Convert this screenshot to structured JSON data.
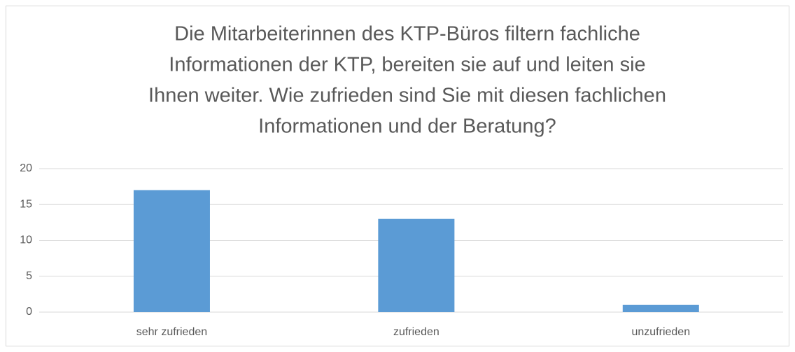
{
  "chart_data": {
    "type": "bar",
    "title": [
      "Die Mitarbeiterinnen des KTP-Büros filtern fachliche",
      "Informationen der KTP, bereiten sie auf und leiten sie",
      "Ihnen weiter. Wie zufrieden sind Sie mit diesen fachlichen",
      "Informationen und der Beratung?"
    ],
    "categories": [
      "sehr zufrieden",
      "zufrieden",
      "unzufrieden"
    ],
    "values": [
      17,
      13,
      1
    ],
    "color": "#5b9bd5",
    "ylim": [
      0,
      20
    ],
    "yticks": [
      0,
      5,
      10,
      15,
      20
    ],
    "grid": true
  }
}
